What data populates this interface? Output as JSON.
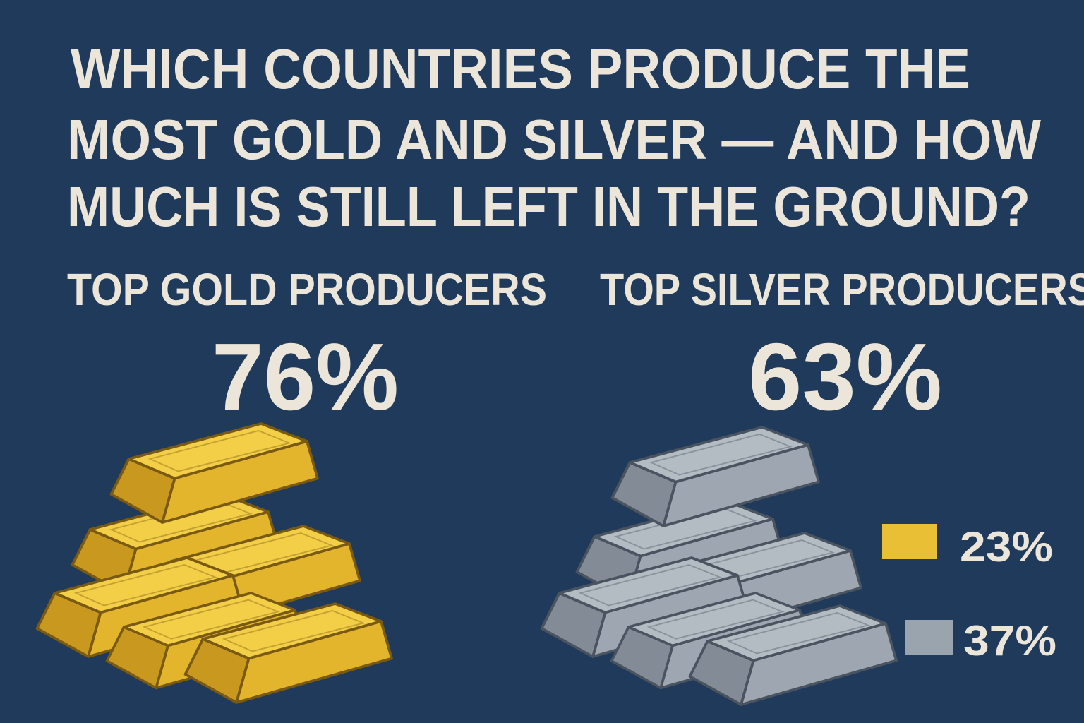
{
  "header": {
    "title_lines": [
      "WHICH COUNTRIES PRODUCE THE",
      "MOST GOLD AND SILVER — AND HOW",
      "MUCH IS STILL LEFT IN THE GROUND?"
    ]
  },
  "sections": [
    {
      "heading": "TOP GOLD PRODUCERS",
      "value": "76%"
    },
    {
      "heading": "TOP SILVER PRODUCERS",
      "value": "63%"
    }
  ],
  "legend": [
    {
      "color": "#e8bf35",
      "label": "23%"
    },
    {
      "color": "#9aa4ae",
      "label": "37%"
    }
  ]
}
